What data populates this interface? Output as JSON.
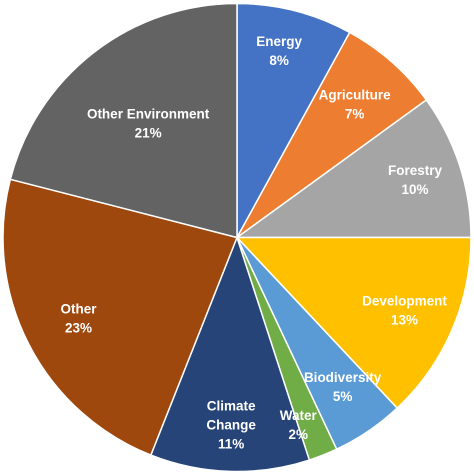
{
  "chart_data": {
    "type": "pie",
    "start_angle_deg": 0,
    "direction": "clockwise",
    "slices": [
      {
        "label": "Energy",
        "value": 8,
        "value_label": "8%",
        "color": "#4472C4"
      },
      {
        "label": "Agriculture",
        "value": 7,
        "value_label": "7%",
        "color": "#ED7D31"
      },
      {
        "label": "Forestry",
        "value": 10,
        "value_label": "10%",
        "color": "#A5A5A5"
      },
      {
        "label": "Development",
        "value": 13,
        "value_label": "13%",
        "color": "#FFC000"
      },
      {
        "label": "Biodiversity",
        "value": 5,
        "value_label": "5%",
        "color": "#5B9BD5"
      },
      {
        "label": "Water",
        "value": 2,
        "value_label": "2%",
        "color": "#70AD47"
      },
      {
        "label": "Climate Change",
        "value": 11,
        "value_label": "11%",
        "color": "#264478"
      },
      {
        "label": "Other",
        "value": 23,
        "value_label": "23%",
        "color": "#9E480E"
      },
      {
        "label": "Other Environment",
        "value": 21,
        "value_label": "21%",
        "color": "#636363"
      }
    ]
  }
}
